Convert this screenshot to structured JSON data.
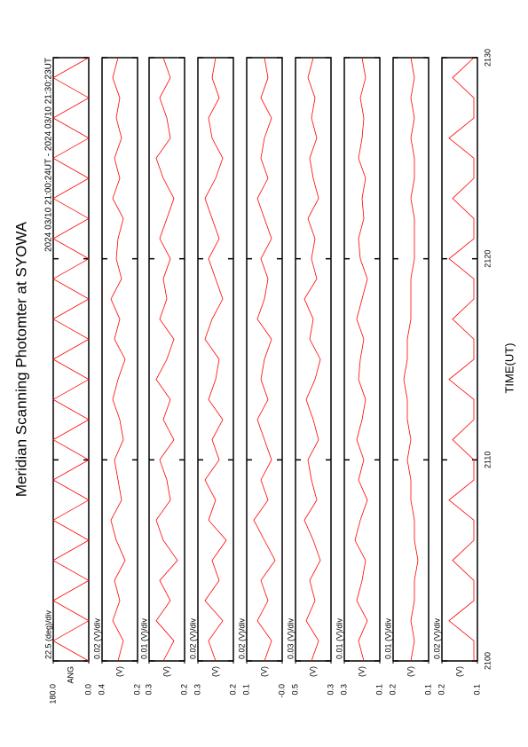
{
  "chart_data": {
    "type": "line",
    "title": "Meridian Scanning Photomter at SYOWA",
    "subtitle": "2024 03/10 21:00:24UT - 2024 03/10 21:30:23UT",
    "xlabel": "TIME(UT)",
    "xlim": [
      2100,
      2130
    ],
    "xticks": [
      2100,
      2110,
      2120,
      2130
    ],
    "x": [
      2100,
      2101,
      2102,
      2103,
      2104,
      2105,
      2106,
      2107,
      2108,
      2109,
      2110,
      2111,
      2112,
      2113,
      2114,
      2115,
      2116,
      2117,
      2118,
      2119,
      2120,
      2121,
      2122,
      2123,
      2124,
      2125,
      2126,
      2127,
      2128,
      2129,
      2130
    ],
    "panels": [
      {
        "scale_label": "22.5 (deg)/div",
        "ylabel": "ANG",
        "color": "#ff0000",
        "ylim": [
          0,
          180
        ],
        "yticks": [
          {
            "value": 180,
            "label": "180.0"
          },
          {
            "value": 0,
            "label": "0.0"
          }
        ],
        "values": [
          0,
          180,
          0,
          180,
          0,
          180,
          0,
          180,
          0,
          180,
          0,
          180,
          0,
          180,
          0,
          180,
          0,
          180,
          0,
          180,
          0,
          180,
          0,
          180,
          0,
          180,
          0,
          180,
          0,
          180,
          0
        ]
      },
      {
        "scale_label": "0.02 (V)/div",
        "ylabel": "(V)",
        "color": "#ff0000",
        "ylim": [
          0.2,
          0.4
        ],
        "yticks": [
          0.4,
          0.2
        ],
        "values": [
          0.31,
          0.28,
          0.34,
          0.3,
          0.33,
          0.27,
          0.32,
          0.35,
          0.29,
          0.31,
          0.33,
          0.28,
          0.3,
          0.34,
          0.31,
          0.27,
          0.33,
          0.3,
          0.35,
          0.29,
          0.32,
          0.31,
          0.28,
          0.34,
          0.3,
          0.33,
          0.29,
          0.32,
          0.3,
          0.34,
          0.31
        ]
      },
      {
        "scale_label": "0.01 (V)/div",
        "ylabel": "(V)",
        "color": "#ff0000",
        "ylim": [
          0.2,
          0.3
        ],
        "yticks": [
          0.3,
          0.2
        ],
        "values": [
          0.26,
          0.23,
          0.28,
          0.24,
          0.27,
          0.22,
          0.26,
          0.28,
          0.24,
          0.25,
          0.27,
          0.23,
          0.26,
          0.24,
          0.28,
          0.25,
          0.23,
          0.27,
          0.25,
          0.26,
          0.24,
          0.27,
          0.25,
          0.23,
          0.26,
          0.28,
          0.24,
          0.25,
          0.27,
          0.24,
          0.26
        ]
      },
      {
        "scale_label": "0.02 (V)/div",
        "ylabel": "(V)",
        "color": "#ff0000",
        "ylim": [
          0.2,
          0.3
        ],
        "yticks": [
          0.3,
          0.2
        ],
        "values": [
          0.25,
          0.27,
          0.23,
          0.28,
          0.24,
          0.26,
          0.22,
          0.27,
          0.25,
          0.28,
          0.24,
          0.26,
          0.23,
          0.27,
          0.25,
          0.24,
          0.28,
          0.26,
          0.23,
          0.25,
          0.27,
          0.24,
          0.26,
          0.28,
          0.25,
          0.23,
          0.26,
          0.27,
          0.24,
          0.26,
          0.25
        ]
      },
      {
        "scale_label": "0.02 (V)/div",
        "ylabel": "(V)",
        "color": "#ff0000",
        "ylim": [
          0,
          0.1
        ],
        "yticks": [
          0.1,
          {
            "value": 0,
            "label": "-0.0"
          }
        ],
        "values": [
          0.05,
          0.03,
          0.07,
          0.04,
          0.06,
          0.02,
          0.05,
          0.08,
          0.04,
          0.06,
          0.03,
          0.05,
          0.07,
          0.04,
          0.06,
          0.05,
          0.03,
          0.07,
          0.05,
          0.04,
          0.06,
          0.03,
          0.05,
          0.07,
          0.04,
          0.06,
          0.05,
          0.03,
          0.06,
          0.04,
          0.05
        ]
      },
      {
        "scale_label": "0.03 (V)/div",
        "ylabel": "(V)",
        "color": "#ff0000",
        "ylim": [
          0.3,
          0.5
        ],
        "yticks": [
          0.5,
          0.3
        ],
        "values": [
          0.41,
          0.37,
          0.44,
          0.39,
          0.42,
          0.36,
          0.4,
          0.45,
          0.38,
          0.41,
          0.43,
          0.37,
          0.4,
          0.44,
          0.39,
          0.36,
          0.42,
          0.4,
          0.45,
          0.38,
          0.41,
          0.39,
          0.43,
          0.37,
          0.4,
          0.42,
          0.38,
          0.41,
          0.39,
          0.43,
          0.4
        ]
      },
      {
        "scale_label": "0.01 (V)/div",
        "ylabel": "(V)",
        "color": "#ff0000",
        "ylim": [
          0.1,
          0.3
        ],
        "yticks": [
          0.3,
          0.1
        ],
        "values": [
          0.19,
          0.22,
          0.17,
          0.23,
          0.2,
          0.18,
          0.24,
          0.21,
          0.17,
          0.22,
          0.19,
          0.23,
          0.2,
          0.18,
          0.22,
          0.21,
          0.19,
          0.23,
          0.2,
          0.17,
          0.21,
          0.22,
          0.19,
          0.2,
          0.18,
          0.22,
          0.2,
          0.19,
          0.21,
          0.18,
          0.2
        ]
      },
      {
        "scale_label": "0.01 (V)/div",
        "ylabel": "(V)",
        "color": "#ff0000",
        "ylim": [
          0.1,
          0.2
        ],
        "yticks": [
          0.2,
          0.1
        ],
        "values": [
          0.15,
          0.14,
          0.15,
          0.14,
          0.14,
          0.13,
          0.14,
          0.14,
          0.15,
          0.15,
          0.16,
          0.15,
          0.16,
          0.16,
          0.17,
          0.16,
          0.16,
          0.15,
          0.15,
          0.15,
          0.14,
          0.14,
          0.14,
          0.15,
          0.14,
          0.14,
          0.15,
          0.14,
          0.15,
          0.14,
          0.15
        ]
      },
      {
        "scale_label": "0.02 (V)/div",
        "ylabel": "(V)",
        "color": "#ff0000",
        "ylim": [
          0.1,
          0.2
        ],
        "yticks": [
          0.2,
          0.1
        ],
        "values": [
          0.11,
          0.11,
          0.18,
          0.11,
          0.11,
          0.17,
          0.11,
          0.11,
          0.18,
          0.11,
          0.11,
          0.17,
          0.11,
          0.11,
          0.18,
          0.11,
          0.11,
          0.17,
          0.11,
          0.11,
          0.18,
          0.11,
          0.11,
          0.17,
          0.11,
          0.11,
          0.18,
          0.11,
          0.11,
          0.17,
          0.11
        ]
      }
    ]
  }
}
